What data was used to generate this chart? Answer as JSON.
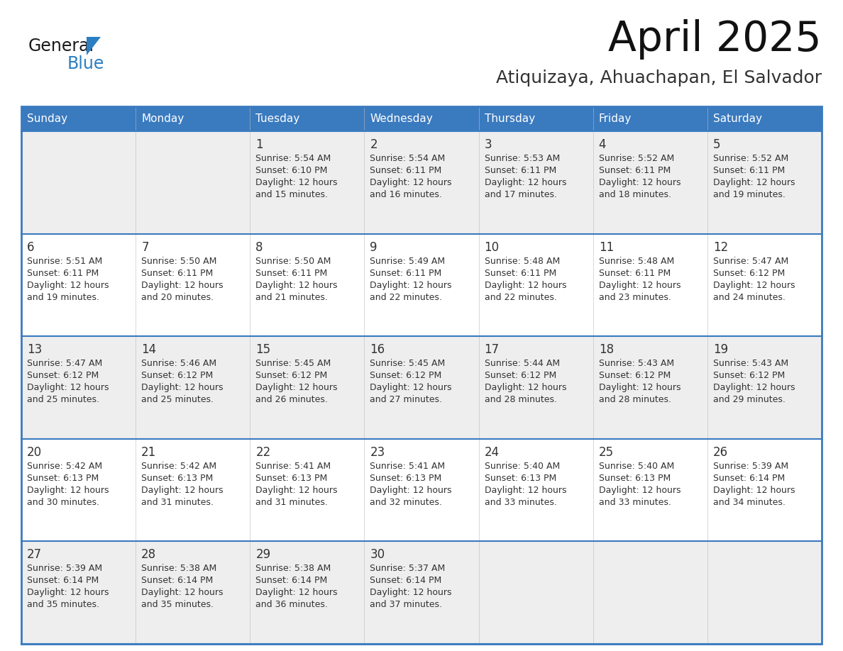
{
  "title": "April 2025",
  "subtitle": "Atiquizaya, Ahuachapan, El Salvador",
  "header_bg": "#3a7abf",
  "header_text": "#ffffff",
  "row_bg_odd": "#eeeeee",
  "row_bg_even": "#ffffff",
  "border_color": "#3a7abf",
  "text_color": "#333333",
  "days_of_week": [
    "Sunday",
    "Monday",
    "Tuesday",
    "Wednesday",
    "Thursday",
    "Friday",
    "Saturday"
  ],
  "calendar_data": [
    [
      {
        "day": "",
        "sunrise": "",
        "sunset": "",
        "daylight_min": ""
      },
      {
        "day": "",
        "sunrise": "",
        "sunset": "",
        "daylight_min": ""
      },
      {
        "day": "1",
        "sunrise": "5:54 AM",
        "sunset": "6:10 PM",
        "daylight_min": "15 minutes."
      },
      {
        "day": "2",
        "sunrise": "5:54 AM",
        "sunset": "6:11 PM",
        "daylight_min": "16 minutes."
      },
      {
        "day": "3",
        "sunrise": "5:53 AM",
        "sunset": "6:11 PM",
        "daylight_min": "17 minutes."
      },
      {
        "day": "4",
        "sunrise": "5:52 AM",
        "sunset": "6:11 PM",
        "daylight_min": "18 minutes."
      },
      {
        "day": "5",
        "sunrise": "5:52 AM",
        "sunset": "6:11 PM",
        "daylight_min": "19 minutes."
      }
    ],
    [
      {
        "day": "6",
        "sunrise": "5:51 AM",
        "sunset": "6:11 PM",
        "daylight_min": "19 minutes."
      },
      {
        "day": "7",
        "sunrise": "5:50 AM",
        "sunset": "6:11 PM",
        "daylight_min": "20 minutes."
      },
      {
        "day": "8",
        "sunrise": "5:50 AM",
        "sunset": "6:11 PM",
        "daylight_min": "21 minutes."
      },
      {
        "day": "9",
        "sunrise": "5:49 AM",
        "sunset": "6:11 PM",
        "daylight_min": "22 minutes."
      },
      {
        "day": "10",
        "sunrise": "5:48 AM",
        "sunset": "6:11 PM",
        "daylight_min": "22 minutes."
      },
      {
        "day": "11",
        "sunrise": "5:48 AM",
        "sunset": "6:11 PM",
        "daylight_min": "23 minutes."
      },
      {
        "day": "12",
        "sunrise": "5:47 AM",
        "sunset": "6:12 PM",
        "daylight_min": "24 minutes."
      }
    ],
    [
      {
        "day": "13",
        "sunrise": "5:47 AM",
        "sunset": "6:12 PM",
        "daylight_min": "25 minutes."
      },
      {
        "day": "14",
        "sunrise": "5:46 AM",
        "sunset": "6:12 PM",
        "daylight_min": "25 minutes."
      },
      {
        "day": "15",
        "sunrise": "5:45 AM",
        "sunset": "6:12 PM",
        "daylight_min": "26 minutes."
      },
      {
        "day": "16",
        "sunrise": "5:45 AM",
        "sunset": "6:12 PM",
        "daylight_min": "27 minutes."
      },
      {
        "day": "17",
        "sunrise": "5:44 AM",
        "sunset": "6:12 PM",
        "daylight_min": "28 minutes."
      },
      {
        "day": "18",
        "sunrise": "5:43 AM",
        "sunset": "6:12 PM",
        "daylight_min": "28 minutes."
      },
      {
        "day": "19",
        "sunrise": "5:43 AM",
        "sunset": "6:12 PM",
        "daylight_min": "29 minutes."
      }
    ],
    [
      {
        "day": "20",
        "sunrise": "5:42 AM",
        "sunset": "6:13 PM",
        "daylight_min": "30 minutes."
      },
      {
        "day": "21",
        "sunrise": "5:42 AM",
        "sunset": "6:13 PM",
        "daylight_min": "31 minutes."
      },
      {
        "day": "22",
        "sunrise": "5:41 AM",
        "sunset": "6:13 PM",
        "daylight_min": "31 minutes."
      },
      {
        "day": "23",
        "sunrise": "5:41 AM",
        "sunset": "6:13 PM",
        "daylight_min": "32 minutes."
      },
      {
        "day": "24",
        "sunrise": "5:40 AM",
        "sunset": "6:13 PM",
        "daylight_min": "33 minutes."
      },
      {
        "day": "25",
        "sunrise": "5:40 AM",
        "sunset": "6:13 PM",
        "daylight_min": "33 minutes."
      },
      {
        "day": "26",
        "sunrise": "5:39 AM",
        "sunset": "6:14 PM",
        "daylight_min": "34 minutes."
      }
    ],
    [
      {
        "day": "27",
        "sunrise": "5:39 AM",
        "sunset": "6:14 PM",
        "daylight_min": "35 minutes."
      },
      {
        "day": "28",
        "sunrise": "5:38 AM",
        "sunset": "6:14 PM",
        "daylight_min": "35 minutes."
      },
      {
        "day": "29",
        "sunrise": "5:38 AM",
        "sunset": "6:14 PM",
        "daylight_min": "36 minutes."
      },
      {
        "day": "30",
        "sunrise": "5:37 AM",
        "sunset": "6:14 PM",
        "daylight_min": "37 minutes."
      },
      {
        "day": "",
        "sunrise": "",
        "sunset": "",
        "daylight_min": ""
      },
      {
        "day": "",
        "sunrise": "",
        "sunset": "",
        "daylight_min": ""
      },
      {
        "day": "",
        "sunrise": "",
        "sunset": "",
        "daylight_min": ""
      }
    ]
  ],
  "logo_general_color": "#1a1a1a",
  "logo_blue_color": "#2b7fc1",
  "logo_triangle_color": "#2b7fc1"
}
